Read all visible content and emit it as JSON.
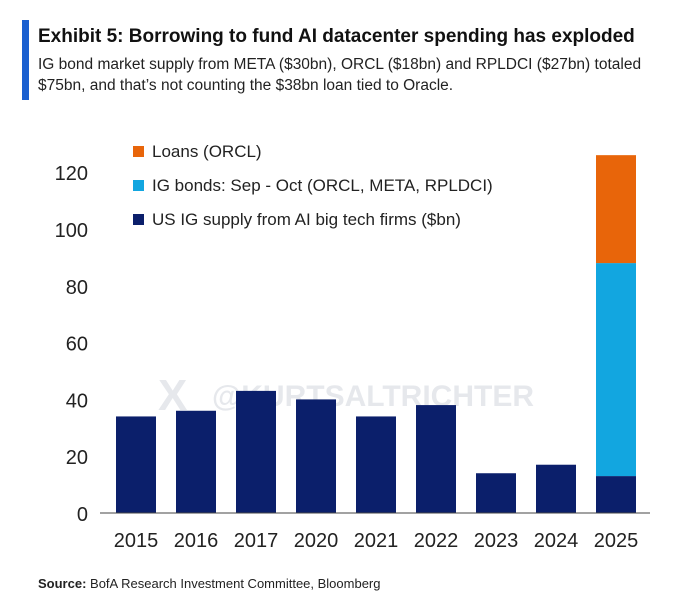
{
  "header": {
    "title": "Exhibit 5: Borrowing to fund AI datacenter spending has exploded",
    "subtitle": "IG bond market supply from META ($30bn), ORCL ($18bn) and RPLDCI ($27bn) totaled $75bn, and that’s not counting the $38bn loan tied to Oracle."
  },
  "watermark": "@KURTSALTRICHTER",
  "source": {
    "label": "Source:",
    "text": "BofA Research Investment Committee, Bloomberg"
  },
  "chart_data": {
    "type": "bar",
    "stacked": true,
    "categories": [
      "2015",
      "2016",
      "2017",
      "2020",
      "2021",
      "2022",
      "2023",
      "2024",
      "2025"
    ],
    "series": [
      {
        "name": "US IG supply from AI big tech firms ($bn)",
        "color": "#0b1f6b",
        "values": [
          34,
          36,
          43,
          40,
          34,
          38,
          14,
          17,
          13
        ]
      },
      {
        "name": "IG bonds: Sep - Oct (ORCL, META, RPLDCI)",
        "color": "#12a6e0",
        "values": [
          0,
          0,
          0,
          0,
          0,
          0,
          0,
          0,
          75
        ]
      },
      {
        "name": "Loans (ORCL)",
        "color": "#e8650a",
        "values": [
          0,
          0,
          0,
          0,
          0,
          0,
          0,
          0,
          38
        ]
      }
    ],
    "legend_order": [
      2,
      1,
      0
    ],
    "ylim": [
      0,
      125
    ],
    "yticks": [
      0,
      20,
      40,
      60,
      80,
      100,
      120
    ],
    "grid": false,
    "legend_position": "top-left",
    "xlabel": "",
    "ylabel": ""
  }
}
